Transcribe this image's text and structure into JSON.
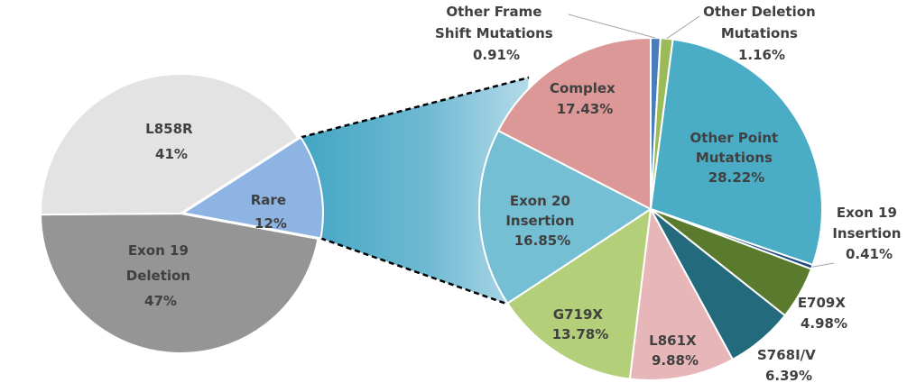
{
  "chart_data": [
    {
      "type": "pie",
      "title": "",
      "slices": [
        {
          "name": "L858R",
          "value": 41,
          "label": "41%",
          "color": "#e3e3e3"
        },
        {
          "name": "Exon 19 Deletion",
          "value": 47,
          "label": "47%",
          "color": "#959595"
        },
        {
          "name": "Rare",
          "value": 12,
          "label": "12%",
          "color": "#8eb4e3"
        }
      ],
      "exploded_slice": "Rare"
    },
    {
      "type": "pie",
      "title": "",
      "parent_slice": "Rare",
      "slices": [
        {
          "name": "Other Frame Shift Mutations",
          "value": 0.91,
          "label": "0.91%",
          "color": "#4a7ebb"
        },
        {
          "name": "Other Deletion Mutations",
          "value": 1.16,
          "label": "1.16%",
          "color": "#9bbb59"
        },
        {
          "name": "Other Point Mutations",
          "value": 28.22,
          "label": "28.22%",
          "color": "#4bacc6"
        },
        {
          "name": "Exon 19 Insertion",
          "value": 0.41,
          "label": "0.41%",
          "color": "#1f497d"
        },
        {
          "name": "E709X",
          "value": 4.98,
          "label": "4.98%",
          "color": "#5a7a2e"
        },
        {
          "name": "S768I/V",
          "value": 6.39,
          "label": "6.39%",
          "color": "#246a7d"
        },
        {
          "name": "L861X",
          "value": 9.88,
          "label": "9.88%",
          "color": "#e6b6b8"
        },
        {
          "name": "G719X",
          "value": 13.78,
          "label": "13.78%",
          "color": "#b3cf7a"
        },
        {
          "name": "Exon 20 Insertion",
          "value": 16.85,
          "label": "16.85%",
          "color": "#74bfd3"
        },
        {
          "name": "Complex",
          "value": 17.43,
          "label": "17.43%",
          "color": "#db9897"
        }
      ]
    }
  ],
  "labels": {
    "l858r": {
      "lines": [
        "L858R",
        "41%"
      ]
    },
    "exon19del": {
      "lines": [
        "Exon 19",
        "Deletion",
        "47%"
      ]
    },
    "rare": {
      "lines": [
        "Rare",
        "12%"
      ]
    },
    "other_fs": {
      "lines": [
        "Other Frame",
        "Shift Mutations",
        "0.91%"
      ]
    },
    "other_del": {
      "lines": [
        "Other Deletion",
        "Mutations",
        "1.16%"
      ]
    },
    "other_point": {
      "lines": [
        "Other Point",
        "Mutations",
        "28.22%"
      ]
    },
    "exon19ins": {
      "lines": [
        "Exon 19",
        "Insertion",
        "0.41%"
      ]
    },
    "e709x": {
      "lines": [
        "E709X",
        "4.98%"
      ]
    },
    "s768": {
      "lines": [
        "S768I/V",
        "6.39%"
      ]
    },
    "l861x": {
      "lines": [
        "L861X",
        "9.88%"
      ]
    },
    "g719x": {
      "lines": [
        "G719X",
        "13.78%"
      ]
    },
    "exon20ins": {
      "lines": [
        "Exon 20",
        "Insertion",
        "16.85%"
      ]
    },
    "complex": {
      "lines": [
        "Complex",
        "17.43%"
      ]
    }
  }
}
